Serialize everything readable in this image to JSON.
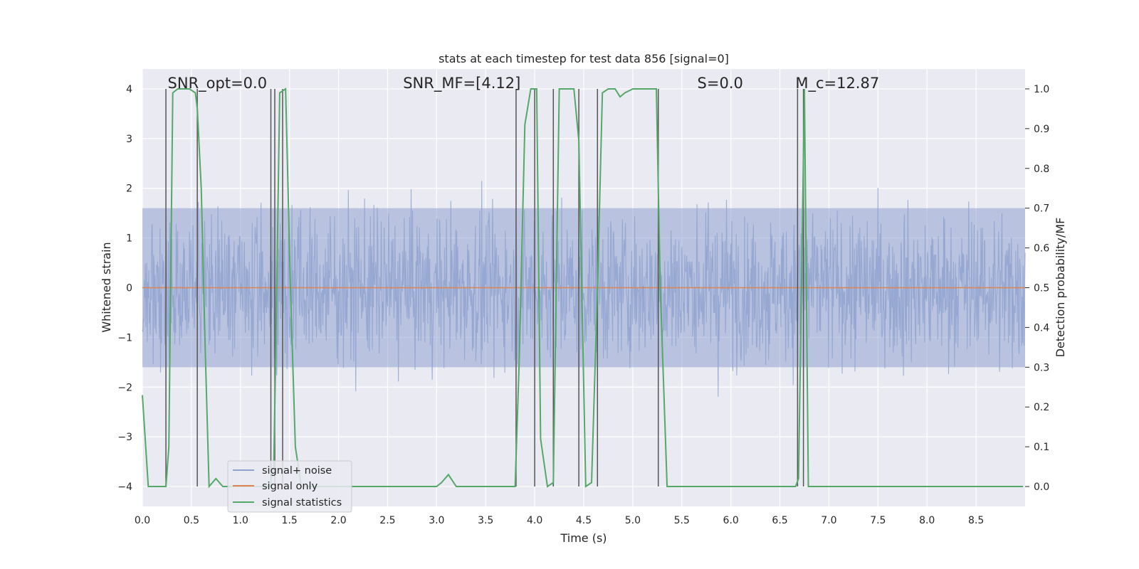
{
  "chart_data": {
    "type": "line",
    "title": "stats at each timestep for test data 856 [signal=0]",
    "xlabel": "Time (s)",
    "ylabel_left": "Whitened strain",
    "ylabel_right": "Detection probability/MF",
    "xlim": [
      0.0,
      9.0
    ],
    "ylim_left": [
      -4.4,
      4.4
    ],
    "ylim_right": [
      -0.05,
      1.05
    ],
    "x_ticks": [
      "0.0",
      "0.5",
      "1.0",
      "1.5",
      "2.0",
      "2.5",
      "3.0",
      "3.5",
      "4.0",
      "4.5",
      "5.0",
      "5.5",
      "6.0",
      "6.5",
      "7.0",
      "7.5",
      "8.0",
      "8.5"
    ],
    "y_ticks_left": [
      "−4",
      "−3",
      "−2",
      "−1",
      "0",
      "1",
      "2",
      "3",
      "4"
    ],
    "y_ticks_right": [
      "0.0",
      "0.1",
      "0.2",
      "0.3",
      "0.4",
      "0.5",
      "0.6",
      "0.7",
      "0.8",
      "0.9",
      "1.0"
    ],
    "grid": true,
    "legend_position": "lower-left",
    "annotations": [
      {
        "text": "SNR_opt=0.0",
        "x": 0.2
      },
      {
        "text": "SNR_MF=[4.12]",
        "x": 2.6
      },
      {
        "text": "S=0.0",
        "x": 5.6
      },
      {
        "text": "M_c=12.87",
        "x": 6.6
      }
    ],
    "series": [
      {
        "name": "signal+ noise",
        "axis": "left",
        "color": "#8fa3cf",
        "kind": "noise-band",
        "typical_range": [
          -1.6,
          1.6
        ],
        "peak_range": [
          -3.8,
          3.8
        ],
        "sample_rate_hz": 100
      },
      {
        "name": "signal only",
        "axis": "left",
        "color": "#dd8452",
        "x": [
          0.0,
          9.0
        ],
        "values": [
          0.0,
          0.0
        ]
      },
      {
        "name": "signal statistics",
        "axis": "right",
        "color": "#55a868",
        "x": [
          0.0,
          0.06,
          0.12,
          0.24,
          0.27,
          0.31,
          0.36,
          0.42,
          0.48,
          0.54,
          0.56,
          0.6,
          0.64,
          0.68,
          0.75,
          0.82,
          0.9,
          1.0,
          1.1,
          1.2,
          1.3,
          1.34,
          1.37,
          1.4,
          1.46,
          1.51,
          1.56,
          1.62,
          1.7,
          2.0,
          2.5,
          3.0,
          3.05,
          3.12,
          3.2,
          3.5,
          3.8,
          3.84,
          3.9,
          3.96,
          4.02,
          4.06,
          4.13,
          4.19,
          4.25,
          4.3,
          4.4,
          4.45,
          4.52,
          4.58,
          4.64,
          4.69,
          4.75,
          4.82,
          4.87,
          4.92,
          5.0,
          5.1,
          5.24,
          5.28,
          5.35,
          5.5,
          6.0,
          6.5,
          6.66,
          6.69,
          6.72,
          6.75,
          6.79,
          6.85,
          7.0,
          7.5,
          8.0,
          8.5,
          8.98
        ],
        "values": [
          0.23,
          0.0,
          0.0,
          0.0,
          0.1,
          0.99,
          1.0,
          1.0,
          1.0,
          0.99,
          0.95,
          0.75,
          0.35,
          0.0,
          0.02,
          0.0,
          0.0,
          0.0,
          0.0,
          0.0,
          0.0,
          0.05,
          0.5,
          0.99,
          1.0,
          0.5,
          0.1,
          0.0,
          0.0,
          0.0,
          0.0,
          0.0,
          0.01,
          0.03,
          0.0,
          0.0,
          0.0,
          0.3,
          0.91,
          1.0,
          1.0,
          0.12,
          0.0,
          0.01,
          1.0,
          1.0,
          1.0,
          0.87,
          0.0,
          0.01,
          0.5,
          0.99,
          1.0,
          1.0,
          0.98,
          0.99,
          1.0,
          1.0,
          1.0,
          0.5,
          0.0,
          0.0,
          0.0,
          0.0,
          0.0,
          0.02,
          0.5,
          1.0,
          0.0,
          0.0,
          0.0,
          0.0,
          0.0,
          0.0,
          0.0
        ]
      }
    ],
    "vertical_markers": {
      "color": "#555555",
      "x": [
        0.24,
        0.56,
        1.31,
        1.35,
        1.43,
        3.81,
        4.0,
        4.19,
        4.45,
        4.64,
        5.26,
        6.68,
        6.74
      ],
      "ymin": [
        -4.0,
        -4.0,
        -4.0,
        -4.0,
        -4.0,
        -4.0,
        -4.0,
        -4.0,
        -4.0,
        -4.0,
        -4.0,
        -4.0,
        -4.0
      ],
      "ymax": [
        4.0,
        4.0,
        4.0,
        4.0,
        4.0,
        4.0,
        4.0,
        4.0,
        4.0,
        4.0,
        4.0,
        4.0,
        4.0
      ]
    }
  }
}
